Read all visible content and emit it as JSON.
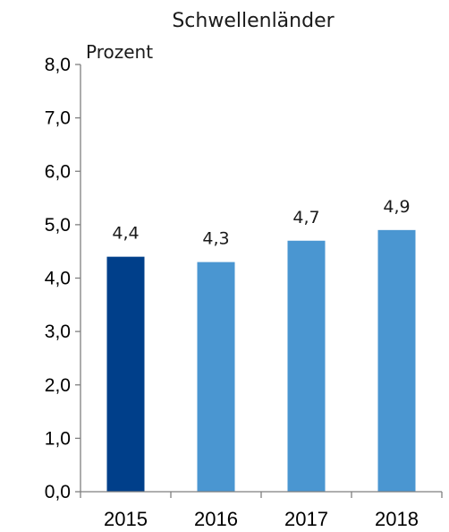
{
  "chart_data": {
    "type": "bar",
    "title": "Schwellenländer",
    "ylabel": "Prozent",
    "xlabel": "",
    "categories": [
      "2015",
      "2016",
      "2017",
      "2018"
    ],
    "values": [
      4.4,
      4.3,
      4.7,
      4.9
    ],
    "value_labels": [
      "4,4",
      "4,3",
      "4,7",
      "4,9"
    ],
    "ylim": [
      0,
      8
    ],
    "yticks": [
      0,
      1,
      2,
      3,
      4,
      5,
      6,
      7,
      8
    ],
    "ytick_labels": [
      "0,0",
      "1,0",
      "2,0",
      "3,0",
      "4,0",
      "5,0",
      "6,0",
      "7,0",
      "8,0"
    ],
    "grid": false,
    "bar_colors": [
      "#003f8a",
      "#4a96d1",
      "#4a96d1",
      "#4a96d1"
    ]
  }
}
